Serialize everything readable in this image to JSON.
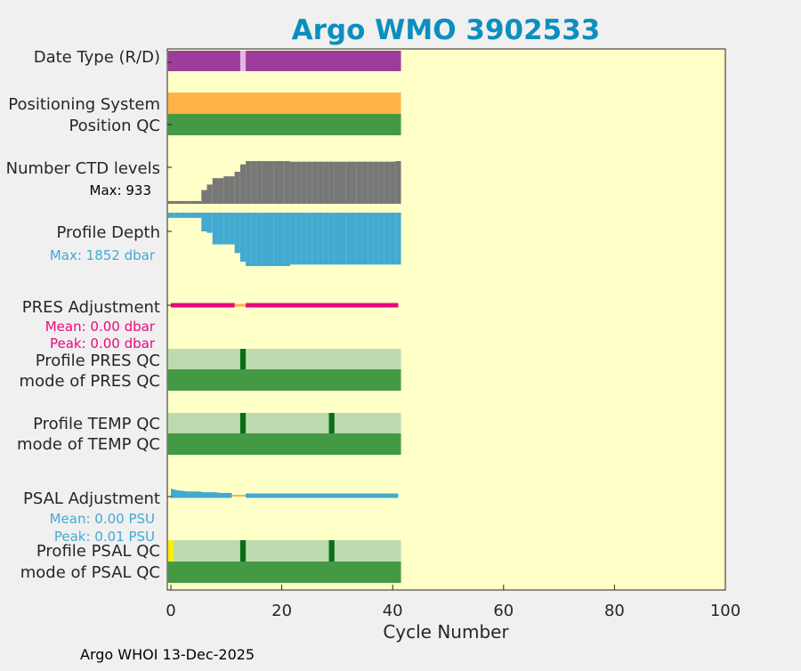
{
  "chart_data": {
    "type": "bar",
    "title": "Argo WMO 3902533",
    "xlabel": "Cycle Number",
    "xlim": [
      0,
      100
    ],
    "x_ticks": [
      0,
      20,
      40,
      60,
      80,
      100
    ],
    "x_tick_labels": [
      "0",
      "20",
      "40",
      "60",
      "80",
      "100"
    ],
    "last_cycle": 41,
    "footer": "Argo WHOI 13-Dec-2025",
    "colors": {
      "background": "#ffffc8",
      "figure": "#f0f0f0",
      "title": "#0c8fbe",
      "date_type": "#9c3d9c",
      "date_type_alt": "#e3b5e3",
      "positioning": "#ffb347",
      "qc_good": "#449944",
      "qc_light": "#bcdaaf",
      "qc_dark": "#0d6e1a",
      "qc_yellow": "#ffee00",
      "ctd": "#777777",
      "depth": "#42aad0",
      "pres_adj": "#e8087c",
      "psal_adj": "#42aad0",
      "adj_zero": "#ffb347"
    },
    "rows": {
      "date_type": {
        "label": "Date Type (R/D)",
        "flagged_cycles": [
          13
        ]
      },
      "positioning_system": {
        "label": "Positioning System"
      },
      "position_qc": {
        "label": "Position QC"
      },
      "ctd_levels": {
        "label": "Number CTD levels",
        "max_label": "Max: 933",
        "max": 933,
        "steps": [
          {
            "from": 0,
            "to": 5,
            "value": 60
          },
          {
            "from": 6,
            "value": 300
          },
          {
            "from": 7,
            "value": 420
          },
          {
            "from": 8,
            "to": 9,
            "value": 560
          },
          {
            "from": 10,
            "to": 11,
            "value": 600
          },
          {
            "from": 12,
            "value": 700
          },
          {
            "from": 13,
            "value": 860
          },
          {
            "from": 14,
            "to": 21,
            "value": 933
          },
          {
            "from": 22,
            "to": 40,
            "value": 920
          },
          {
            "from": 41,
            "value": 933
          }
        ]
      },
      "profile_depth": {
        "label": "Profile Depth",
        "max_label": "Max: 1852 dbar",
        "max": 1852,
        "steps": [
          {
            "from": 0,
            "to": 5,
            "value": 180
          },
          {
            "from": 6,
            "value": 650
          },
          {
            "from": 7,
            "value": 700
          },
          {
            "from": 8,
            "to": 11,
            "value": 1100
          },
          {
            "from": 12,
            "value": 1400
          },
          {
            "from": 13,
            "value": 1700
          },
          {
            "from": 14,
            "to": 21,
            "value": 1852
          },
          {
            "from": 22,
            "to": 40,
            "value": 1800
          },
          {
            "from": 41,
            "value": 1800
          }
        ]
      },
      "pres_adjustment": {
        "label": "PRES Adjustment",
        "mean_label": "Mean: 0.00 dbar",
        "peak_label": "Peak: 0.00 dbar",
        "zero_cycles": [
          12,
          13
        ]
      },
      "profile_pres_qc": {
        "label": "Profile PRES QC",
        "dark_cycles": [
          13
        ]
      },
      "mode_pres_qc": {
        "label": "mode of PRES QC"
      },
      "profile_temp_qc": {
        "label": "Profile TEMP QC",
        "dark_cycles": [
          13,
          29
        ]
      },
      "mode_temp_qc": {
        "label": "mode of TEMP QC"
      },
      "psal_adjustment": {
        "label": "PSAL Adjustment",
        "mean_label": "Mean: 0.00 PSU",
        "peak_label": "Peak: 0.01 PSU",
        "zero_cycles": [
          12,
          13
        ],
        "values": [
          0.008,
          0.006,
          0.005,
          0.004,
          0.004,
          0.004,
          0.003,
          0.003,
          0.003,
          0.002,
          0.002,
          0.002
        ]
      },
      "profile_psal_qc": {
        "label": "Profile PSAL QC",
        "dark_cycles": [
          13,
          29
        ],
        "yellow_cycles": [
          0
        ]
      },
      "mode_psal_qc": {
        "label": "mode of PSAL QC"
      }
    }
  }
}
